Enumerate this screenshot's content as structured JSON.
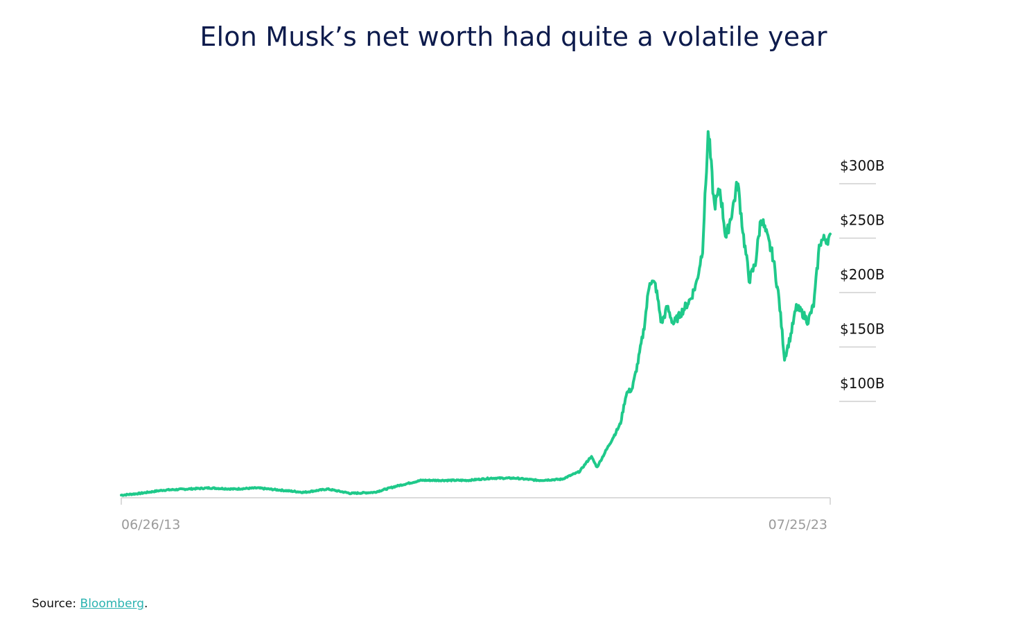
{
  "chart_data": {
    "type": "line",
    "title": "Elon Musk’s net worth had quite a volatile year",
    "xlabel": "",
    "ylabel": "",
    "x_ticks": [
      "06/26/13",
      "07/25/23"
    ],
    "y_ticks": [
      "$100B",
      "$150B",
      "$200B",
      "$250B",
      "$300B"
    ],
    "ylim": [
      0,
      300
    ],
    "unit": "billion USD",
    "grid": false,
    "series": [
      {
        "color": "#1fc98a",
        "points": [
          [
            "2013-06",
            2
          ],
          [
            "2013-10",
            4
          ],
          [
            "2014-02",
            7
          ],
          [
            "2014-06",
            8
          ],
          [
            "2014-10",
            9
          ],
          [
            "2015-02",
            8
          ],
          [
            "2015-06",
            9
          ],
          [
            "2015-10",
            7
          ],
          [
            "2016-02",
            5
          ],
          [
            "2016-06",
            8
          ],
          [
            "2016-10",
            4
          ],
          [
            "2017-02",
            5
          ],
          [
            "2017-06",
            11
          ],
          [
            "2017-10",
            16
          ],
          [
            "2018-02",
            16
          ],
          [
            "2018-06",
            16
          ],
          [
            "2018-10",
            18
          ],
          [
            "2019-02",
            18
          ],
          [
            "2019-06",
            16
          ],
          [
            "2019-10",
            17
          ],
          [
            "2020-01",
            24
          ],
          [
            "2020-03",
            38
          ],
          [
            "2020-04",
            28
          ],
          [
            "2020-06",
            48
          ],
          [
            "2020-08",
            68
          ],
          [
            "2020-09",
            96
          ],
          [
            "2020-10",
            100
          ],
          [
            "2020-11",
            125
          ],
          [
            "2020-12",
            155
          ],
          [
            "2021-01",
            200
          ],
          [
            "2021-02",
            195
          ],
          [
            "2021-03",
            160
          ],
          [
            "2021-04",
            175
          ],
          [
            "2021-05",
            160
          ],
          [
            "2021-06",
            167
          ],
          [
            "2021-07",
            175
          ],
          [
            "2021-08",
            183
          ],
          [
            "2021-09",
            198
          ],
          [
            "2021-10",
            228
          ],
          [
            "2021-11",
            338
          ],
          [
            "2021-12",
            268
          ],
          [
            "2022-01",
            283
          ],
          [
            "2022-02",
            238
          ],
          [
            "2022-03",
            262
          ],
          [
            "2022-04",
            290
          ],
          [
            "2022-05",
            240
          ],
          [
            "2022-06",
            200
          ],
          [
            "2022-07",
            215
          ],
          [
            "2022-08",
            258
          ],
          [
            "2022-09",
            240
          ],
          [
            "2022-10",
            222
          ],
          [
            "2022-11",
            185
          ],
          [
            "2022-12",
            128
          ],
          [
            "2023-01",
            148
          ],
          [
            "2023-02",
            175
          ],
          [
            "2023-03",
            170
          ],
          [
            "2023-04",
            162
          ],
          [
            "2023-05",
            178
          ],
          [
            "2023-06",
            235
          ],
          [
            "2023-07",
            238
          ]
        ]
      }
    ]
  },
  "source": {
    "prefix": "Source: ",
    "link_text": "Bloomberg",
    "suffix": "."
  }
}
